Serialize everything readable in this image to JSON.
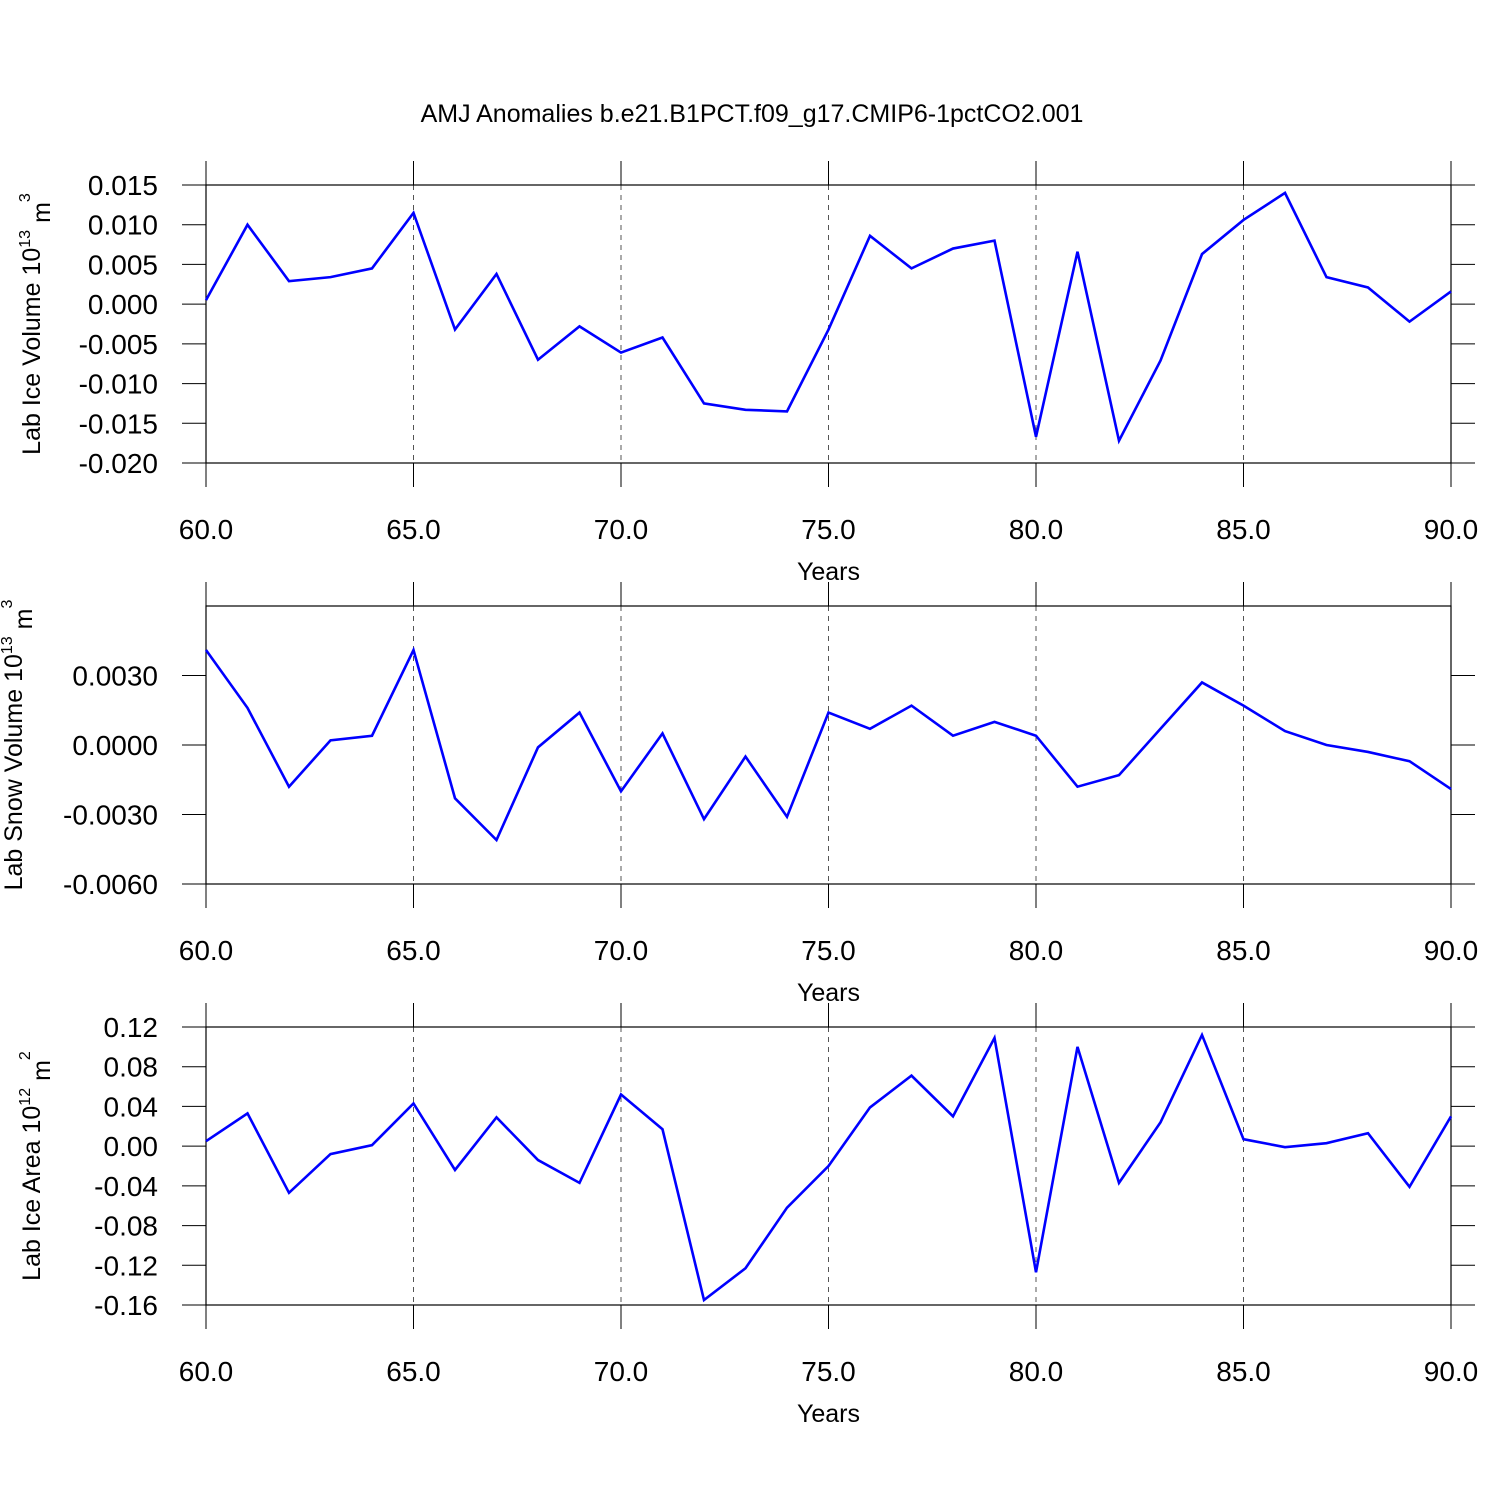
{
  "title": "AMJ Anomalies b.e21.B1PCT.f09_g17.CMIP6-1pctCO2.001",
  "chart_data": [
    {
      "type": "line",
      "xlabel": "Years",
      "ylabel": {
        "main": "Lab Ice Volume 10",
        "exp": "13",
        "unit": "m",
        "unit_exp": "3"
      },
      "x": [
        60,
        61,
        62,
        63,
        64,
        65,
        66,
        67,
        68,
        69,
        70,
        71,
        72,
        73,
        74,
        75,
        76,
        77,
        78,
        79,
        80,
        81,
        82,
        83,
        84,
        85,
        86,
        87,
        88,
        89,
        90
      ],
      "values": [
        0.0005,
        0.01,
        0.0029,
        0.0034,
        0.0045,
        0.0115,
        -0.0032,
        0.0038,
        -0.007,
        -0.0028,
        -0.0061,
        -0.0042,
        -0.0125,
        -0.0133,
        -0.0135,
        -0.0032,
        0.0086,
        0.0045,
        0.007,
        0.008,
        -0.0167,
        0.0066,
        -0.0172,
        -0.0071,
        0.0063,
        0.0106,
        0.014,
        0.0034,
        0.0021,
        -0.0022,
        0.0016
      ],
      "color": "#0000ff",
      "xlim": [
        60,
        90
      ],
      "xticks": [
        {
          "value": 60,
          "label": "60.0"
        },
        {
          "value": 65,
          "label": "65.0"
        },
        {
          "value": 70,
          "label": "70.0"
        },
        {
          "value": 75,
          "label": "75.0"
        },
        {
          "value": 80,
          "label": "80.0"
        },
        {
          "value": 85,
          "label": "85.0"
        },
        {
          "value": 90,
          "label": "90.0"
        }
      ],
      "ylim": [
        -0.02,
        0.015
      ],
      "yticks": [
        {
          "value": 0.015,
          "label": "0.015"
        },
        {
          "value": 0.01,
          "label": "0.010"
        },
        {
          "value": 0.005,
          "label": "0.005"
        },
        {
          "value": 0,
          "label": "0.000"
        },
        {
          "value": -0.005,
          "label": "-0.005"
        },
        {
          "value": -0.01,
          "label": "-0.010"
        },
        {
          "value": -0.015,
          "label": "-0.015"
        },
        {
          "value": -0.02,
          "label": "-0.020"
        }
      ],
      "grid": true
    },
    {
      "type": "line",
      "xlabel": "Years",
      "ylabel": {
        "main": "Lab Snow Volume 10",
        "exp": "13",
        "unit": "m",
        "unit_exp": "3"
      },
      "x": [
        60,
        61,
        62,
        63,
        64,
        65,
        66,
        67,
        68,
        69,
        70,
        71,
        72,
        73,
        74,
        75,
        76,
        77,
        78,
        79,
        80,
        81,
        82,
        83,
        84,
        85,
        86,
        87,
        88,
        89,
        90
      ],
      "values": [
        0.0041,
        0.0016,
        -0.0018,
        0.0002,
        0.0004,
        0.0041,
        -0.0023,
        -0.0041,
        -0.0001,
        0.0014,
        -0.002,
        0.0005,
        -0.0032,
        -0.0005,
        -0.0031,
        0.0014,
        0.0007,
        0.0017,
        0.0004,
        0.001,
        0.0004,
        -0.0018,
        -0.0013,
        0.0007,
        0.0027,
        0.0017,
        0.0006,
        0.0,
        -0.0003,
        -0.0007,
        -0.0019
      ],
      "color": "#0000ff",
      "xlim": [
        60,
        90
      ],
      "xticks": [
        {
          "value": 60,
          "label": "60.0"
        },
        {
          "value": 65,
          "label": "65.0"
        },
        {
          "value": 70,
          "label": "70.0"
        },
        {
          "value": 75,
          "label": "75.0"
        },
        {
          "value": 80,
          "label": "80.0"
        },
        {
          "value": 85,
          "label": "85.0"
        },
        {
          "value": 90,
          "label": "90.0"
        }
      ],
      "ylim": [
        -0.006,
        0.006
      ],
      "yticks": [
        {
          "value": 0.003,
          "label": "0.0030"
        },
        {
          "value": 0,
          "label": "0.0000"
        },
        {
          "value": -0.003,
          "label": "-0.0030"
        },
        {
          "value": -0.006,
          "label": "-0.0060"
        }
      ],
      "grid": true
    },
    {
      "type": "line",
      "xlabel": "Years",
      "ylabel": {
        "main": "Lab Ice Area 10",
        "exp": "12",
        "unit": "m",
        "unit_exp": "2"
      },
      "x": [
        60,
        61,
        62,
        63,
        64,
        65,
        66,
        67,
        68,
        69,
        70,
        71,
        72,
        73,
        74,
        75,
        76,
        77,
        78,
        79,
        80,
        81,
        82,
        83,
        84,
        85,
        86,
        87,
        88,
        89,
        90
      ],
      "values": [
        0.005,
        0.033,
        -0.047,
        -0.008,
        0.001,
        0.043,
        -0.024,
        0.029,
        -0.014,
        -0.037,
        0.052,
        0.017,
        -0.155,
        -0.123,
        -0.062,
        -0.02,
        0.039,
        0.071,
        0.03,
        0.109,
        -0.127,
        0.1,
        -0.037,
        0.024,
        0.112,
        0.007,
        -0.001,
        0.003,
        0.013,
        -0.041,
        0.03
      ],
      "color": "#0000ff",
      "xlim": [
        60,
        90
      ],
      "xticks": [
        {
          "value": 60,
          "label": "60.0"
        },
        {
          "value": 65,
          "label": "65.0"
        },
        {
          "value": 70,
          "label": "70.0"
        },
        {
          "value": 75,
          "label": "75.0"
        },
        {
          "value": 80,
          "label": "80.0"
        },
        {
          "value": 85,
          "label": "85.0"
        },
        {
          "value": 90,
          "label": "90.0"
        }
      ],
      "ylim": [
        -0.16,
        0.12
      ],
      "yticks": [
        0.12,
        0.08,
        0.04,
        {
          "value": 0,
          "label": "0.00"
        },
        -0.04,
        -0.08,
        -0.12,
        -0.16
      ],
      "grid": true
    }
  ]
}
